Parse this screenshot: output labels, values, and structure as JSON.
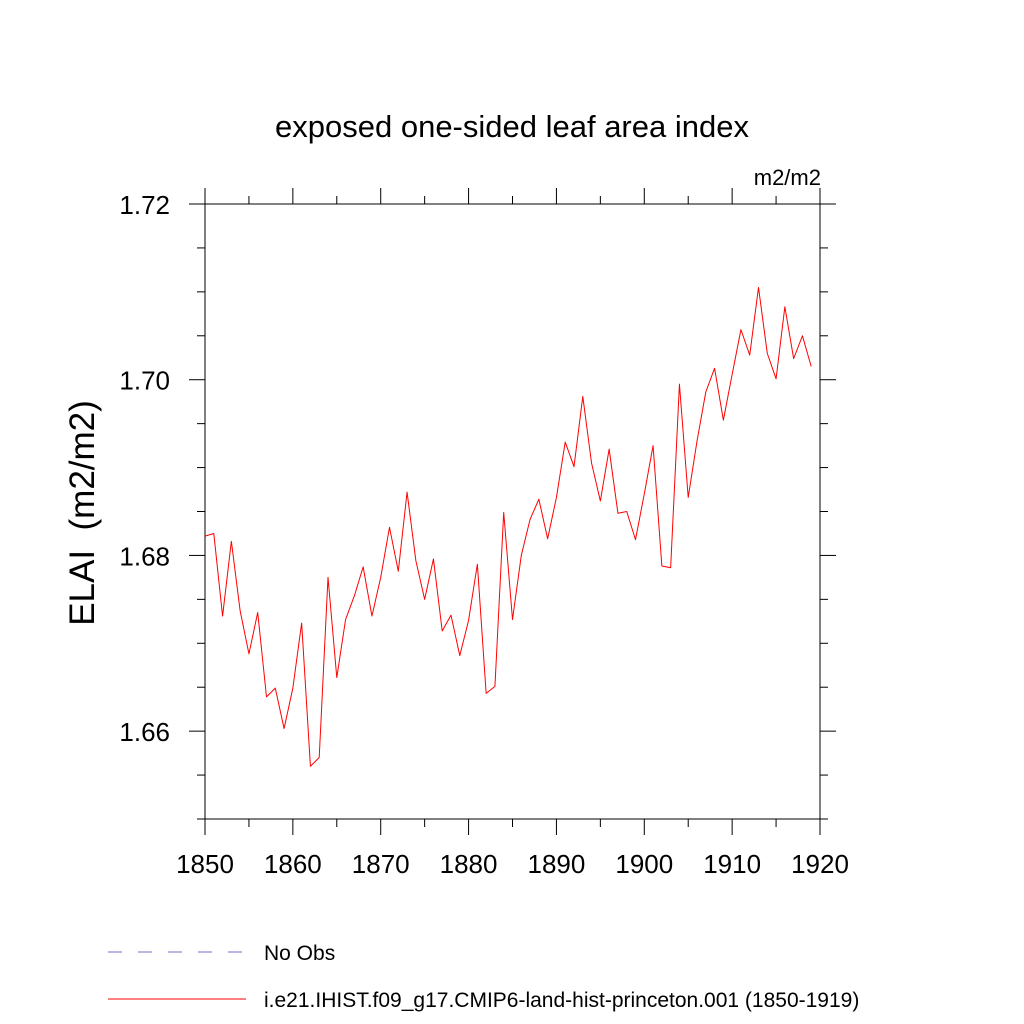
{
  "chart_data": {
    "type": "line",
    "title": "exposed one-sided leaf area index",
    "units": "m2/m2",
    "ylabel": "ELAI  (m2/m2)",
    "xlabel": "",
    "xlim": [
      1850,
      1920
    ],
    "ylim": [
      1.65,
      1.72
    ],
    "x_ticks": [
      1850,
      1860,
      1870,
      1880,
      1890,
      1900,
      1910,
      1920
    ],
    "x_tick_labels": [
      "1850",
      "1860",
      "1870",
      "1880",
      "1890",
      "1900",
      "1910",
      "1920"
    ],
    "y_ticks": [
      1.66,
      1.68,
      1.7,
      1.72
    ],
    "y_tick_labels": [
      "1.66",
      "1.68",
      "1.70",
      "1.72"
    ],
    "grid": false,
    "legend_position": "bottom",
    "legend": [
      {
        "label": "No Obs",
        "color": "#7b68c8",
        "style": "dashed"
      },
      {
        "label": "i.e21.IHIST.f09_g17.CMIP6-land-hist-princeton.001 (1850-1919)",
        "color": "#ff0000",
        "style": "solid"
      }
    ],
    "series": [
      {
        "name": "i.e21.IHIST.f09_g17.CMIP6-land-hist-princeton.001 (1850-1919)",
        "color": "#ff0000",
        "x": [
          1850,
          1851,
          1852,
          1853,
          1854,
          1855,
          1856,
          1857,
          1858,
          1859,
          1860,
          1861,
          1862,
          1863,
          1864,
          1865,
          1866,
          1867,
          1868,
          1869,
          1870,
          1871,
          1872,
          1873,
          1874,
          1875,
          1876,
          1877,
          1878,
          1879,
          1880,
          1881,
          1882,
          1883,
          1884,
          1885,
          1886,
          1887,
          1888,
          1889,
          1890,
          1891,
          1892,
          1893,
          1894,
          1895,
          1896,
          1897,
          1898,
          1899,
          1900,
          1901,
          1902,
          1903,
          1904,
          1905,
          1906,
          1907,
          1908,
          1909,
          1910,
          1911,
          1912,
          1913,
          1914,
          1915,
          1916,
          1917,
          1918,
          1919
        ],
        "values": [
          1.6822,
          1.6825,
          1.6731,
          1.6816,
          1.6737,
          1.6688,
          1.6735,
          1.6639,
          1.6649,
          1.6603,
          1.6649,
          1.6723,
          1.656,
          1.657,
          1.6775,
          1.6661,
          1.6727,
          1.6754,
          1.6787,
          1.6731,
          1.6775,
          1.6832,
          1.6782,
          1.6872,
          1.6794,
          1.675,
          1.6796,
          1.6714,
          1.6732,
          1.6686,
          1.6726,
          1.679,
          1.6643,
          1.6651,
          1.6849,
          1.6727,
          1.68,
          1.6841,
          1.6864,
          1.6819,
          1.6866,
          1.6929,
          1.6901,
          1.6981,
          1.6905,
          1.6862,
          1.6921,
          1.6848,
          1.685,
          1.6818,
          1.687,
          1.6925,
          1.6788,
          1.6786,
          1.6995,
          1.6866,
          1.693,
          1.6986,
          1.7013,
          1.6954,
          1.7006,
          1.7057,
          1.7028,
          1.7105,
          1.703,
          1.7001,
          1.7083,
          1.7024,
          1.705,
          1.7015
        ]
      }
    ]
  }
}
